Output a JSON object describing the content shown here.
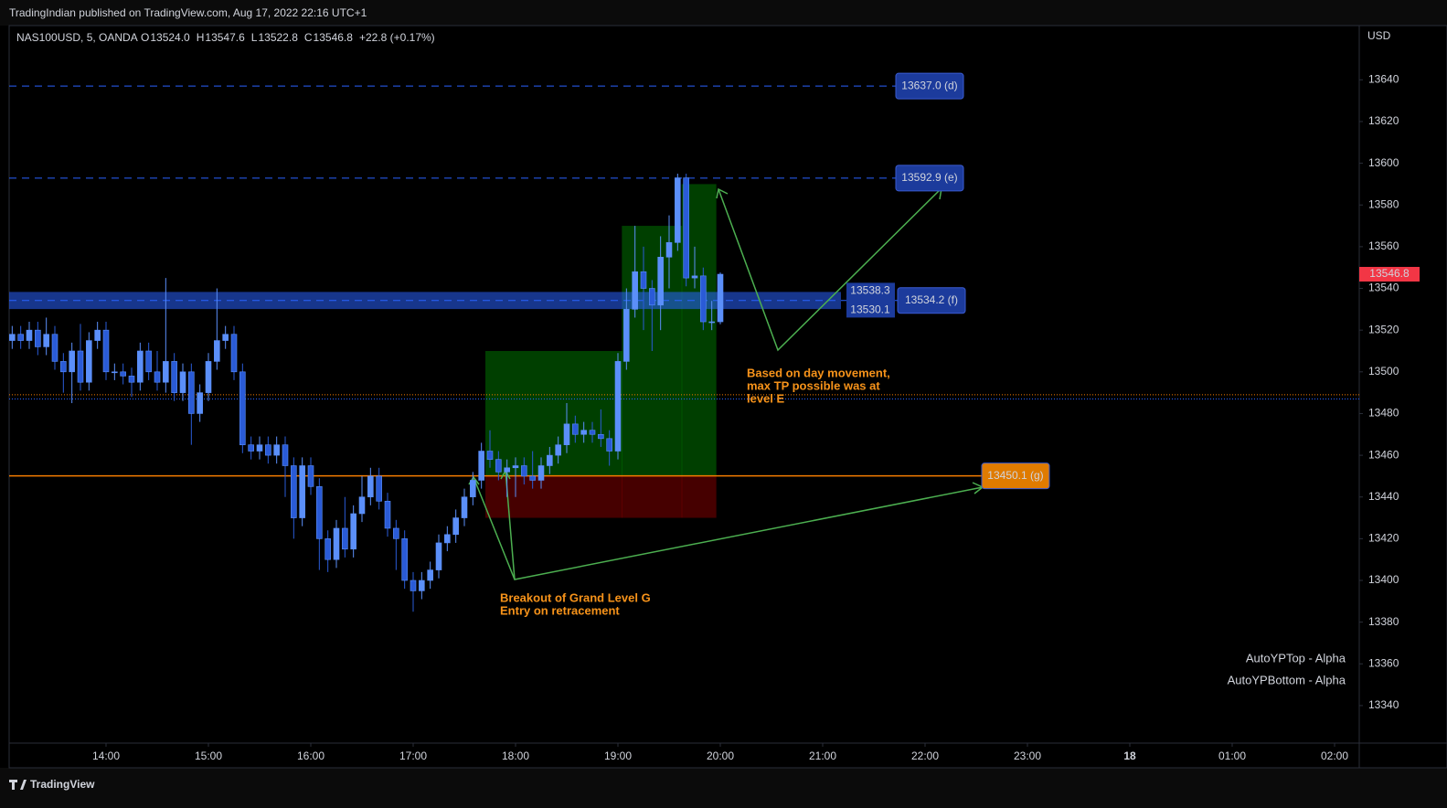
{
  "header": {
    "published": "TradingIndian published on TradingView.com, Aug 17, 2022 22:16 UTC+1"
  },
  "footer": {
    "brand": "TradingView"
  },
  "chart_data": {
    "type": "candlestick",
    "symbol": "NAS100USD, 5, OANDA",
    "ohlc_legend": [
      {
        "key": "O",
        "value": "13524.0"
      },
      {
        "key": "H",
        "value": "13547.6"
      },
      {
        "key": "L",
        "value": "13522.8"
      },
      {
        "key": "C",
        "value": "13546.8"
      }
    ],
    "change": "+22.8 (+0.17%)",
    "currency": "USD",
    "x": [
      "13:05",
      "13:10",
      "13:15",
      "13:20",
      "13:25",
      "13:30",
      "13:35",
      "13:40",
      "13:45",
      "13:50",
      "13:55",
      "14:00",
      "14:05",
      "14:10",
      "14:15",
      "14:20",
      "14:25",
      "14:30",
      "14:35",
      "14:40",
      "14:45",
      "14:50",
      "14:55",
      "15:00",
      "15:05",
      "15:10",
      "15:15",
      "15:20",
      "15:25",
      "15:30",
      "15:35",
      "15:40",
      "15:45",
      "15:50",
      "15:55",
      "16:00",
      "16:05",
      "16:10",
      "16:15",
      "16:20",
      "16:25",
      "16:30",
      "16:35",
      "16:40",
      "16:45",
      "16:50",
      "16:55",
      "17:00",
      "17:05",
      "17:10",
      "17:15",
      "17:20",
      "17:25",
      "17:30",
      "17:35",
      "17:40",
      "17:45",
      "17:50",
      "17:55",
      "18:00",
      "18:05",
      "18:10",
      "18:15",
      "18:20",
      "18:25",
      "18:30",
      "18:35",
      "18:40",
      "18:45",
      "18:50",
      "18:55",
      "19:00",
      "19:05",
      "19:10",
      "19:15",
      "19:20",
      "19:25",
      "19:30",
      "19:35",
      "19:40",
      "19:45",
      "19:50",
      "19:55",
      "20:00"
    ],
    "open": [
      13515,
      13518,
      13515,
      13520,
      13512,
      13518,
      13505,
      13500,
      13510,
      13495,
      13515,
      13520,
      13500,
      13500,
      13498,
      13495,
      13510,
      13500,
      13495,
      13505,
      13490,
      13500,
      13480,
      13490,
      13505,
      13515,
      13518,
      13500,
      13465,
      13462,
      13465,
      13460,
      13465,
      13455,
      13430,
      13455,
      13445,
      13420,
      13410,
      13425,
      13415,
      13432,
      13440,
      13450,
      13438,
      13425,
      13420,
      13400,
      13395,
      13400,
      13405,
      13418,
      13422,
      13430,
      13440,
      13448,
      13462,
      13458,
      13452,
      13454,
      13455,
      13450,
      13448,
      13455,
      13460,
      13465,
      13475,
      13470,
      13472,
      13470,
      13468,
      13462,
      13505,
      13530,
      13548,
      13540,
      13532,
      13555,
      13562,
      13593,
      13545,
      13546,
      13524,
      13524.0
    ],
    "high": [
      13522,
      13522,
      13524,
      13524,
      13526,
      13522,
      13509,
      13514,
      13523,
      13519,
      13524,
      13524,
      13504,
      13504,
      13502,
      13514,
      13514,
      13510,
      13545,
      13509,
      13504,
      13504,
      13494,
      13509,
      13540,
      13522,
      13522,
      13504,
      13469,
      13469,
      13469,
      13469,
      13469,
      13459,
      13459,
      13459,
      13449,
      13424,
      13429,
      13440,
      13436,
      13450,
      13454,
      13454,
      13442,
      13429,
      13424,
      13404,
      13404,
      13409,
      13422,
      13426,
      13434,
      13444,
      13452,
      13466,
      13472,
      13462,
      13458,
      13459,
      13459,
      13462,
      13459,
      13464,
      13469,
      13485,
      13479,
      13476,
      13476,
      13482,
      13472,
      13509,
      13540,
      13570,
      13560,
      13544,
      13565,
      13575,
      13595,
      13595,
      13560,
      13550,
      13534,
      13547.6
    ],
    "low": [
      13511,
      13511,
      13511,
      13508,
      13508,
      13501,
      13490,
      13485,
      13491,
      13491,
      13511,
      13496,
      13496,
      13494,
      13488,
      13491,
      13496,
      13491,
      13490,
      13486,
      13486,
      13465,
      13476,
      13486,
      13501,
      13511,
      13496,
      13461,
      13458,
      13458,
      13456,
      13456,
      13440,
      13420,
      13426,
      13441,
      13405,
      13404,
      13406,
      13411,
      13411,
      13428,
      13436,
      13434,
      13421,
      13405,
      13396,
      13385,
      13391,
      13396,
      13401,
      13414,
      13418,
      13426,
      13436,
      13444,
      13454,
      13448,
      13440,
      13440,
      13446,
      13444,
      13444,
      13451,
      13456,
      13461,
      13466,
      13466,
      13466,
      13464,
      13455,
      13458,
      13501,
      13526,
      13520,
      13510,
      13520,
      13540,
      13558,
      13541,
      13540,
      13520,
      13520,
      13522.8
    ],
    "close": [
      13518,
      13515,
      13520,
      13512,
      13518,
      13505,
      13500,
      13510,
      13495,
      13515,
      13520,
      13500,
      13500,
      13498,
      13495,
      13510,
      13500,
      13495,
      13505,
      13490,
      13500,
      13480,
      13490,
      13505,
      13515,
      13518,
      13500,
      13465,
      13462,
      13465,
      13460,
      13465,
      13455,
      13430,
      13455,
      13445,
      13420,
      13410,
      13425,
      13415,
      13432,
      13440,
      13450,
      13438,
      13425,
      13420,
      13400,
      13395,
      13400,
      13405,
      13418,
      13422,
      13430,
      13440,
      13448,
      13462,
      13458,
      13452,
      13454,
      13455,
      13450,
      13448,
      13455,
      13460,
      13465,
      13475,
      13470,
      13472,
      13470,
      13468,
      13462,
      13505,
      13530,
      13548,
      13540,
      13532,
      13555,
      13562,
      13593,
      13545,
      13546,
      13524,
      13524,
      13546.8
    ],
    "up_color": "#5b8ff9",
    "down_color": "#2a5bd7",
    "ylim": [
      13322,
      13666
    ],
    "yticks": [
      13340,
      13360,
      13380,
      13400,
      13420,
      13440,
      13460,
      13480,
      13500,
      13520,
      13540,
      13560,
      13580,
      13600,
      13620,
      13640
    ],
    "xticks": [
      "14:00",
      "15:00",
      "16:00",
      "17:00",
      "18:00",
      "19:00",
      "20:00",
      "21:00",
      "22:00",
      "23:00",
      {
        "value": "00:00",
        "label": "18"
      },
      "01:00",
      "02:00"
    ],
    "levels": [
      {
        "value": 13637.0,
        "label": "13637.0 (d)",
        "color": "#2962ff",
        "style": "dashed"
      },
      {
        "value": 13592.9,
        "label": "13592.9 (e)",
        "color": "#2962ff",
        "style": "dashed"
      },
      {
        "value": 13534.2,
        "label": "13534.2 (f)",
        "color": "#2962ff",
        "style": "dashed"
      },
      {
        "value": 13450.1,
        "label": "13450.1 (g)",
        "color": "#f57c00",
        "style": "solid"
      }
    ],
    "zone": {
      "top": 13538.3,
      "bottom": 13530.1,
      "color": "#2962ff"
    },
    "dotted_levels": [
      {
        "value": 13489,
        "color": "#f57c00"
      },
      {
        "value": 13487,
        "color": "#2962ff"
      }
    ],
    "positions": [
      {
        "start": "17:45",
        "end": "19:00",
        "entry": 13450,
        "target": 13510,
        "stop": 13430
      },
      {
        "start": "19:05",
        "end": "19:35",
        "entry": 13450,
        "target": 13570,
        "stop": 13430
      },
      {
        "start": "19:40",
        "end": "19:55",
        "entry": 13450,
        "target": 13590,
        "stop": 13430
      }
    ],
    "last_price": 13546.8,
    "annotations": [
      "Based on day movement,",
      "max TP possible was at",
      "level E",
      "Breakout of Grand Level G",
      "Entry on retracement"
    ],
    "indicators": [
      "AutoYPTop - Alpha",
      "AutoYPBottom - Alpha"
    ]
  }
}
